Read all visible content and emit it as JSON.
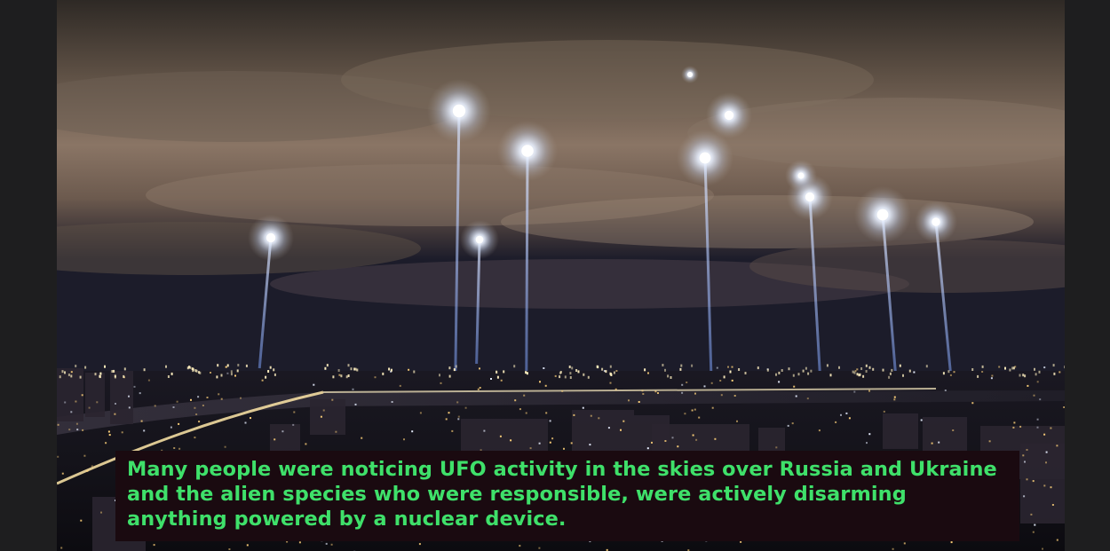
{
  "caption": {
    "text": "Many people were noticing UFO activity in the skies over Russia and Ukraine and the alien species who were responsible, were actively disarming anything powered by a nuclear device.",
    "text_color": "#3fe06a",
    "background_color": "#1a0a10"
  },
  "colors": {
    "letterbox": "#1e1e1f",
    "sky_top": "#3a332d",
    "sky_glow": "#8f7a67",
    "beam": "#9ec0ff",
    "city_lights": "#ffd27a"
  }
}
